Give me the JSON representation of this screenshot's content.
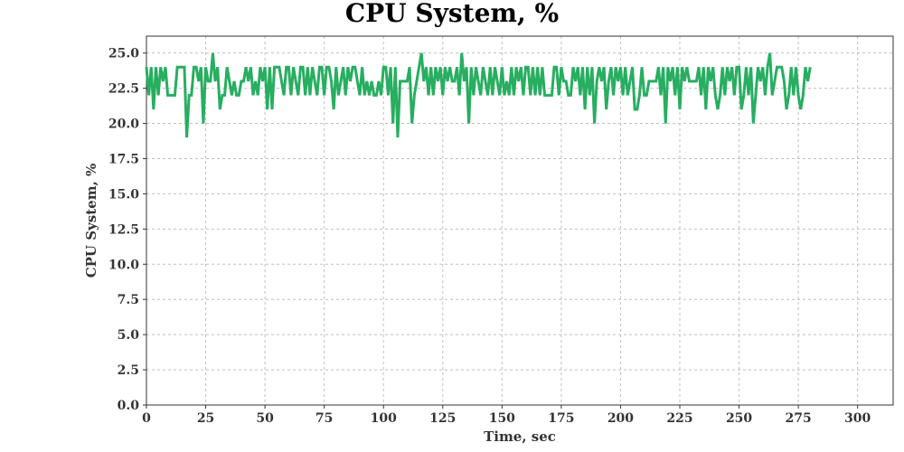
{
  "chart_data": {
    "type": "line",
    "title": "CPU System, %",
    "xlabel": "Time, sec",
    "ylabel": "CPU System, %",
    "xlim": [
      0,
      315
    ],
    "ylim": [
      0,
      26.2
    ],
    "x_ticks": [
      0,
      25,
      50,
      75,
      100,
      125,
      150,
      175,
      200,
      225,
      250,
      275,
      300
    ],
    "y_ticks": [
      0.0,
      2.5,
      5.0,
      7.5,
      10.0,
      12.5,
      15.0,
      17.5,
      20.0,
      22.5,
      25.0
    ],
    "y_tick_decimals": 1,
    "grid": true,
    "legend": "none",
    "series": [
      {
        "color": "#27ae60",
        "x_start": 0,
        "x_step": 1,
        "values": [
          24,
          22,
          24,
          21,
          24,
          22,
          24,
          23,
          24,
          22,
          22,
          22,
          22,
          24,
          24,
          24,
          24,
          19,
          22,
          22,
          24,
          24,
          23,
          24,
          20,
          24,
          23,
          23,
          25,
          23,
          24,
          21,
          22,
          22,
          24,
          23,
          22,
          23,
          22,
          22,
          23,
          23,
          24,
          23,
          24,
          22,
          23,
          22,
          24,
          23,
          24,
          21,
          24,
          21,
          24,
          24,
          24,
          23,
          22,
          24,
          24,
          22,
          24,
          23,
          22,
          24,
          24,
          22,
          24,
          22,
          24,
          23,
          22,
          24,
          24,
          22,
          24,
          24,
          23,
          21,
          24,
          22,
          23,
          24,
          22,
          24,
          23,
          24,
          24,
          23,
          22,
          24,
          22,
          23,
          22,
          23,
          22,
          22,
          23,
          22,
          24,
          24,
          22,
          24,
          20,
          24,
          19,
          23,
          23,
          23,
          23,
          24,
          20,
          22,
          23,
          24,
          25,
          23,
          24,
          22,
          24,
          22,
          24,
          23,
          24,
          22,
          24,
          23,
          24,
          23,
          23,
          24,
          22,
          25,
          23,
          24,
          20,
          24,
          22,
          24,
          23,
          22,
          24,
          23,
          22,
          24,
          22,
          24,
          23,
          22,
          24,
          22,
          23,
          22,
          24,
          22,
          24,
          23,
          24,
          22,
          24,
          24,
          22,
          24,
          22,
          24,
          22,
          24,
          22,
          22,
          22,
          22,
          24,
          24,
          22,
          24,
          23,
          23,
          22,
          22,
          24,
          23,
          24,
          22,
          24,
          21,
          24,
          22,
          24,
          20,
          23,
          24,
          23,
          24,
          21,
          23,
          24,
          22,
          24,
          23,
          24,
          22,
          24,
          22,
          23,
          24,
          21,
          21,
          22,
          24,
          22,
          22,
          23,
          23,
          23,
          23,
          24,
          22,
          24,
          20,
          24,
          23,
          24,
          22,
          24,
          21,
          24,
          23,
          24,
          23,
          23,
          23,
          23,
          24,
          22,
          24,
          21,
          24,
          23,
          24,
          22,
          21,
          22,
          24,
          22,
          24,
          23,
          24,
          22,
          24,
          24,
          21,
          22,
          24,
          22,
          24,
          20,
          22,
          24,
          23,
          24,
          22,
          24,
          25,
          22,
          23,
          24,
          24,
          24,
          23,
          21,
          22,
          24,
          22,
          24,
          22,
          21,
          22,
          24,
          23,
          24
        ]
      }
    ]
  }
}
